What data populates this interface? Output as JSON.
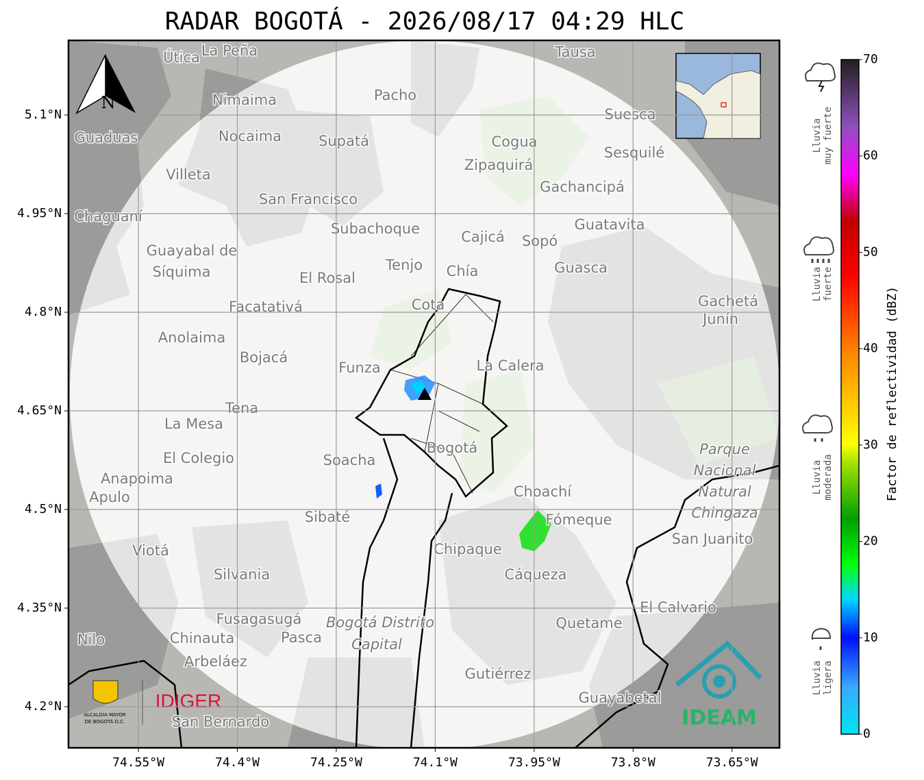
{
  "header": {
    "title": "RADAR BOGOTÁ - 2026/08/17 04:29 HLC"
  },
  "map": {
    "xlim": [
      -74.656,
      -73.578
    ],
    "ylim": [
      4.1375,
      5.2135
    ],
    "xticks": [
      {
        "value": -74.55,
        "label": "74.55°W"
      },
      {
        "value": -74.4,
        "label": "74.4°W"
      },
      {
        "value": -74.25,
        "label": "74.25°W"
      },
      {
        "value": -74.1,
        "label": "74.1°W"
      },
      {
        "value": -73.95,
        "label": "73.95°W"
      },
      {
        "value": -73.8,
        "label": "73.8°W"
      },
      {
        "value": -73.65,
        "label": "73.65°W"
      }
    ],
    "yticks": [
      {
        "value": 5.1,
        "label": "5.1°N"
      },
      {
        "value": 4.95,
        "label": "4.95°N"
      },
      {
        "value": 4.8,
        "label": "4.8°N"
      },
      {
        "value": 4.65,
        "label": "4.65°N"
      },
      {
        "value": 4.5,
        "label": "4.5°N"
      },
      {
        "value": 4.35,
        "label": "4.35°N"
      },
      {
        "value": 4.2,
        "label": "4.2°N"
      }
    ],
    "grid": true,
    "north_label": "N",
    "places": [
      "La Peña",
      "Útica",
      "Tausa",
      "Pacho",
      "Nimaima",
      "Suesca",
      "Guaduas",
      "Nocaima",
      "Supatá",
      "Cogua",
      "Sesquilé",
      "Zipaquirá",
      "Villeta",
      "Gachancipá",
      "San Francisco",
      "Chaguaní",
      "Guatavita",
      "Subachoque",
      "Cajicá",
      "Sopó",
      "Guayabal de",
      "Síquima",
      "Tenjo",
      "Chía",
      "Guasca",
      "El Rosal",
      "Cota",
      "Gachetá",
      "Junín",
      "Facatativá",
      "Anolaima",
      "Bojacá",
      "Funza",
      "La Calera",
      "Tena",
      "La Mesa",
      "Bogotá",
      "Soacha",
      "El Colegio",
      "Anapoima",
      "Apulo",
      "Choachí",
      "Sibaté",
      "Fómeque",
      "San Juanito",
      "Chipaque",
      "Viotá",
      "Cáqueza",
      "Silvania",
      "El Calvario",
      "Fusagasugá",
      "Quetame",
      "Chinauta",
      "Pasca",
      "Nilo",
      "Arbeláez",
      "Gutiérrez",
      "Guayabetal",
      "San Bernardo"
    ],
    "park_lines": [
      "Parque",
      "Nacional",
      "Natural",
      "Chingaza"
    ],
    "district_lines": [
      "Bogotá Distrito",
      "Capital"
    ]
  },
  "colorbar": {
    "label": "Factor de reflectividad (dBZ)",
    "lim": [
      0,
      70
    ],
    "ticks": [
      0,
      10,
      20,
      30,
      40,
      50,
      60,
      70
    ],
    "categories": [
      [
        "Lluvia",
        "muy fuerte"
      ],
      [
        "Lluvia",
        "fuerte"
      ],
      [
        "Lluvia",
        "moderada"
      ],
      [
        "Lluvia",
        "ligera"
      ]
    ]
  },
  "logos": {
    "alcaldia": [
      "ALCALDÍA MAYOR",
      "DE BOGOTÁ D.C."
    ],
    "idiger": "IDIGER",
    "ideam": "IDEAM"
  }
}
